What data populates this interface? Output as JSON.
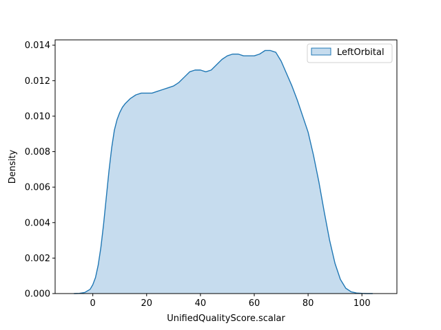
{
  "chart_data": {
    "type": "area",
    "title": "",
    "xlabel": "UnifiedQualityScore.scalar",
    "ylabel": "Density",
    "xlim": [
      -14,
      113
    ],
    "ylim": [
      0,
      0.0143
    ],
    "xticks": [
      0,
      20,
      40,
      60,
      80,
      100
    ],
    "xtick_labels": [
      "0",
      "20",
      "40",
      "60",
      "80",
      "100"
    ],
    "yticks": [
      0,
      0.002,
      0.004,
      0.006,
      0.008,
      0.01,
      0.012,
      0.014
    ],
    "ytick_labels": [
      "0.000",
      "0.002",
      "0.004",
      "0.006",
      "0.008",
      "0.010",
      "0.012",
      "0.014"
    ],
    "grid": false,
    "legend_position": "top-right",
    "series": [
      {
        "name": "LeftOrbital",
        "color": "#1f77b4",
        "fill_color": "#c6dcee",
        "x": [
          -7,
          -5,
          -3,
          -1,
          0,
          1,
          2,
          3,
          4,
          5,
          6,
          7,
          8,
          9,
          10,
          11,
          12,
          14,
          16,
          18,
          20,
          22,
          24,
          26,
          28,
          30,
          32,
          34,
          36,
          38,
          40,
          42,
          44,
          46,
          48,
          50,
          52,
          54,
          56,
          58,
          60,
          62,
          64,
          66,
          68,
          70,
          72,
          74,
          76,
          78,
          80,
          82,
          84,
          86,
          88,
          90,
          92,
          94,
          96,
          98,
          100,
          102,
          104
        ],
        "y": [
          0.0,
          1e-05,
          6e-05,
          0.00024,
          0.0005,
          0.0009,
          0.0016,
          0.0026,
          0.0039,
          0.0054,
          0.0069,
          0.0082,
          0.0092,
          0.0098,
          0.0102,
          0.0105,
          0.0107,
          0.011,
          0.0112,
          0.0113,
          0.0113,
          0.0113,
          0.0114,
          0.0115,
          0.0116,
          0.0117,
          0.0119,
          0.0122,
          0.0125,
          0.0126,
          0.0126,
          0.0125,
          0.0126,
          0.0129,
          0.0132,
          0.0134,
          0.0135,
          0.0135,
          0.0134,
          0.0134,
          0.0134,
          0.0135,
          0.0137,
          0.0137,
          0.0136,
          0.0131,
          0.0124,
          0.0117,
          0.0109,
          0.01,
          0.0091,
          0.0078,
          0.0063,
          0.0046,
          0.003,
          0.0017,
          0.0008,
          0.0003,
          0.0001,
          3e-05,
          1e-05,
          0.0,
          0.0
        ]
      }
    ]
  }
}
